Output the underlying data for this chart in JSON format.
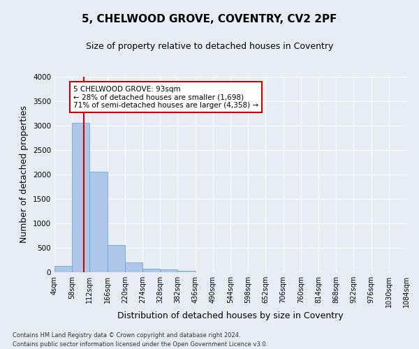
{
  "title_line1": "5, CHELWOOD GROVE, COVENTRY, CV2 2PF",
  "title_line2": "Size of property relative to detached houses in Coventry",
  "xlabel": "Distribution of detached houses by size in Coventry",
  "ylabel": "Number of detached properties",
  "footer_line1": "Contains HM Land Registry data © Crown copyright and database right 2024.",
  "footer_line2": "Contains public sector information licensed under the Open Government Licence v3.0.",
  "bin_edges": [
    4,
    58,
    112,
    166,
    220,
    274,
    328,
    382,
    436,
    490,
    544,
    598,
    652,
    706,
    760,
    814,
    868,
    922,
    976,
    1030,
    1084
  ],
  "bar_heights": [
    130,
    3060,
    2060,
    560,
    195,
    75,
    55,
    35,
    0,
    0,
    0,
    0,
    0,
    0,
    0,
    0,
    0,
    0,
    0,
    0
  ],
  "bar_color": "#aec6e8",
  "bar_edge_color": "#5a9fd4",
  "property_size": 93,
  "property_line_color": "#cc0000",
  "annotation_text": "5 CHELWOOD GROVE: 93sqm\n← 28% of detached houses are smaller (1,698)\n71% of semi-detached houses are larger (4,358) →",
  "annotation_box_color": "#ffffff",
  "annotation_box_edge_color": "#cc0000",
  "ylim": [
    0,
    4000
  ],
  "yticks": [
    0,
    500,
    1000,
    1500,
    2000,
    2500,
    3000,
    3500,
    4000
  ],
  "bg_color": "#e8edf5",
  "plot_bg_color": "#e8edf5",
  "grid_color": "#ffffff",
  "tick_label_fontsize": 7.0,
  "axis_label_fontsize": 9,
  "title1_fontsize": 11,
  "title2_fontsize": 9,
  "annotation_fontsize": 7.5,
  "footer_fontsize": 6.0
}
